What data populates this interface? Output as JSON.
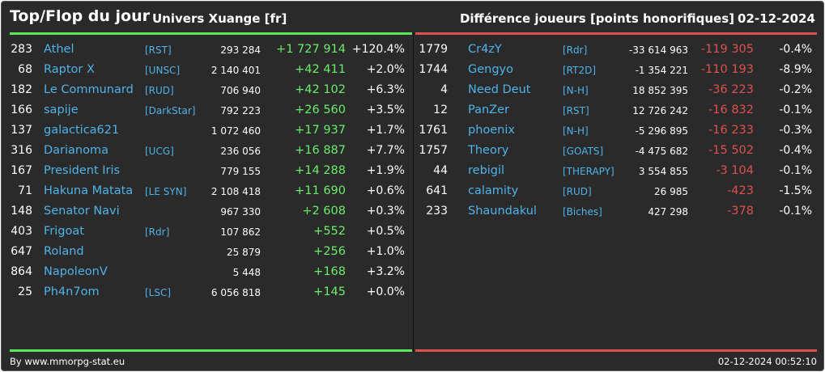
{
  "header": {
    "title": "Top/Flop du jour",
    "univers": "Univers Xuange [fr]",
    "metric": "Différence joueurs [points honorifiques]",
    "date": "02-12-2024"
  },
  "colors": {
    "gain": "#6aee6a",
    "loss": "#e05050",
    "name": "#4fb3ea",
    "background": "#2a2a2a"
  },
  "top": [
    {
      "rank": "283",
      "name": "Athel",
      "alliance": "[RST]",
      "points": "293 284",
      "diff": "+1 727 914",
      "pct": "+120.4%"
    },
    {
      "rank": "68",
      "name": "Raptor X",
      "alliance": "[UNSC]",
      "points": "2 140 401",
      "diff": "+42 411",
      "pct": "+2.0%"
    },
    {
      "rank": "182",
      "name": "Le Communard",
      "alliance": "[RUD]",
      "points": "706 940",
      "diff": "+42 102",
      "pct": "+6.3%"
    },
    {
      "rank": "166",
      "name": "sapije",
      "alliance": "[DarkStar]",
      "points": "792 223",
      "diff": "+26 560",
      "pct": "+3.5%"
    },
    {
      "rank": "137",
      "name": "galactica621",
      "alliance": "",
      "points": "1 072 460",
      "diff": "+17 937",
      "pct": "+1.7%"
    },
    {
      "rank": "316",
      "name": "Darianoma",
      "alliance": "[UCG]",
      "points": "236 056",
      "diff": "+16 887",
      "pct": "+7.7%"
    },
    {
      "rank": "167",
      "name": "President Iris",
      "alliance": "",
      "points": "779 155",
      "diff": "+14 288",
      "pct": "+1.9%"
    },
    {
      "rank": "71",
      "name": "Hakuna Matata",
      "alliance": "[LE SYN]",
      "points": "2 108 418",
      "diff": "+11 690",
      "pct": "+0.6%"
    },
    {
      "rank": "148",
      "name": "Senator Navi",
      "alliance": "",
      "points": "967 330",
      "diff": "+2 608",
      "pct": "+0.3%"
    },
    {
      "rank": "403",
      "name": "Frigoat",
      "alliance": "[Rdr]",
      "points": "107 862",
      "diff": "+552",
      "pct": "+0.5%"
    },
    {
      "rank": "647",
      "name": "Roland",
      "alliance": "",
      "points": "25 879",
      "diff": "+256",
      "pct": "+1.0%"
    },
    {
      "rank": "864",
      "name": "NapoleonV",
      "alliance": "",
      "points": "5 448",
      "diff": "+168",
      "pct": "+3.2%"
    },
    {
      "rank": "25",
      "name": "Ph4n7om",
      "alliance": "[LSC]",
      "points": "6 056 818",
      "diff": "+145",
      "pct": "+0.0%"
    }
  ],
  "flop": [
    {
      "rank": "1779",
      "name": "Cr4zY",
      "alliance": "[Rdr]",
      "points": "-33 614 963",
      "diff": "-119 305",
      "pct": "-0.4%"
    },
    {
      "rank": "1744",
      "name": "Gengyo",
      "alliance": "[RT2D]",
      "points": "-1 354 221",
      "diff": "-110 193",
      "pct": "-8.9%"
    },
    {
      "rank": "4",
      "name": "Need Deut",
      "alliance": "[N-H]",
      "points": "18 852 395",
      "diff": "-36 223",
      "pct": "-0.2%"
    },
    {
      "rank": "12",
      "name": "PanZer",
      "alliance": "[RST]",
      "points": "12 726 242",
      "diff": "-16 832",
      "pct": "-0.1%"
    },
    {
      "rank": "1761",
      "name": "phoenix",
      "alliance": "[N-H]",
      "points": "-5 296 895",
      "diff": "-16 233",
      "pct": "-0.3%"
    },
    {
      "rank": "1757",
      "name": "Theory",
      "alliance": "[GOATS]",
      "points": "-4 475 682",
      "diff": "-15 502",
      "pct": "-0.4%"
    },
    {
      "rank": "44",
      "name": "rebigil",
      "alliance": "[THERAPY]",
      "points": "3 554 855",
      "diff": "-3 104",
      "pct": "-0.1%"
    },
    {
      "rank": "641",
      "name": "calamity",
      "alliance": "[RUD]",
      "points": "26 985",
      "diff": "-423",
      "pct": "-1.5%"
    },
    {
      "rank": "233",
      "name": "Shaundakul",
      "alliance": "[Biches]",
      "points": "427 298",
      "diff": "-378",
      "pct": "-0.1%"
    }
  ],
  "footer": {
    "credit": "By www.mmorpg-stat.eu",
    "timestamp": "02-12-2024 00:52:10"
  }
}
